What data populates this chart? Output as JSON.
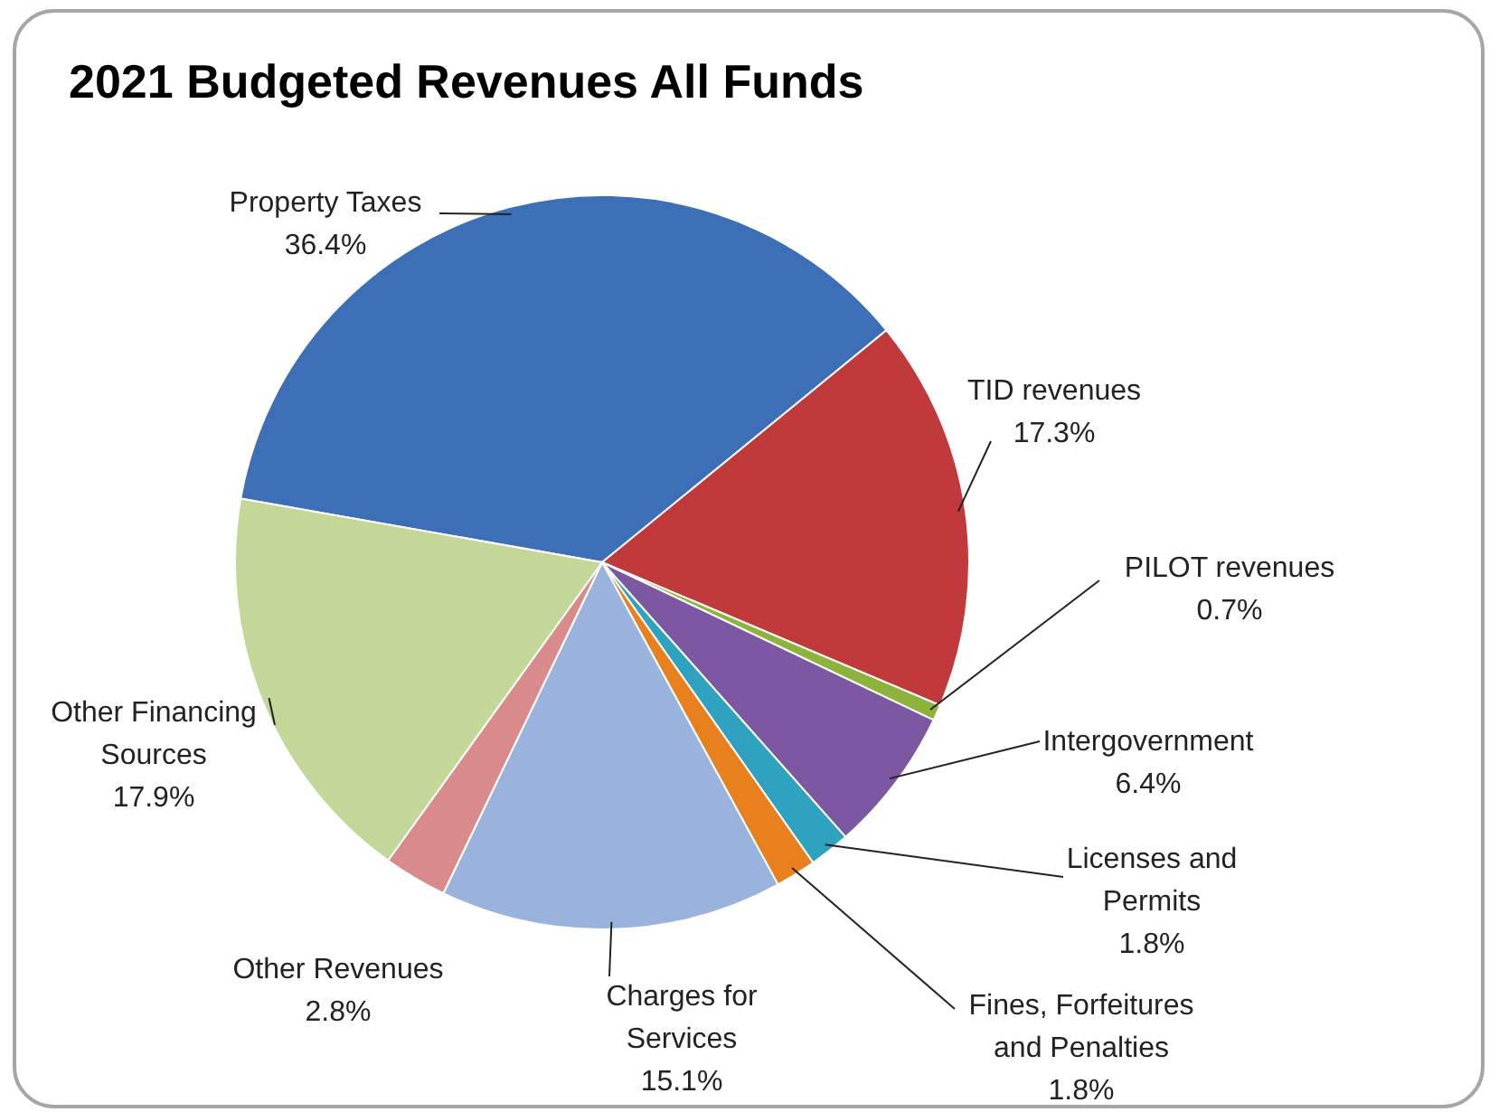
{
  "chart_data": {
    "type": "pie",
    "title": "2021 Budgeted Revenues All Funds",
    "categories": [
      "Property Taxes",
      "TID revenues",
      "PILOT revenues",
      "Intergovernment",
      "Licenses and Permits",
      "Fines, Forfeitures and Penalties",
      "Charges for Services",
      "Other Revenues",
      "Other Financing Sources"
    ],
    "values": [
      36.4,
      17.3,
      0.7,
      6.4,
      1.8,
      1.8,
      15.1,
      2.8,
      17.9
    ],
    "value_labels": [
      "36.4%",
      "17.3%",
      "0.7%",
      "6.4%",
      "1.8%",
      "1.8%",
      "15.1%",
      "2.8%",
      "17.9%"
    ],
    "colors": [
      "#3c6fb6",
      "#c0393b",
      "#8db33c",
      "#7d58a2",
      "#2ea2bf",
      "#e8801e",
      "#9ab3dc",
      "#d98b8b",
      "#c3d898"
    ]
  }
}
